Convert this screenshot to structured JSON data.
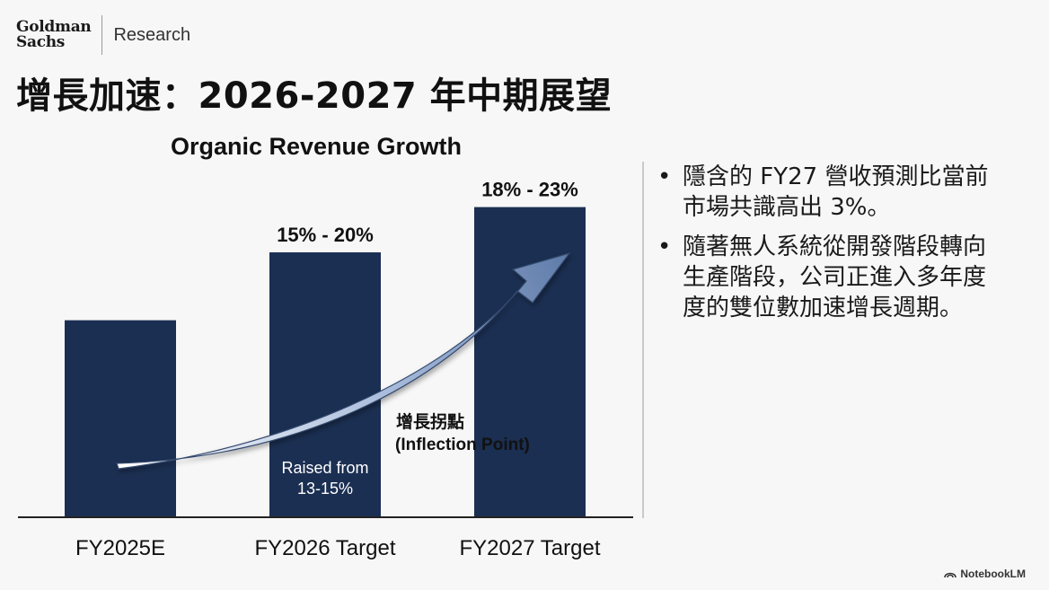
{
  "header": {
    "logo_line1": "Goldman",
    "logo_line2": "Sachs",
    "research_label": "Research"
  },
  "title": "增長加速：2026-2027 年中期展望",
  "chart_data": {
    "type": "bar",
    "title": "Organic Revenue Growth",
    "categories": [
      "FY2025E",
      "FY2026 Target",
      "FY2027 Target"
    ],
    "values": [
      13,
      17.5,
      20.5
    ],
    "value_labels": [
      "",
      "15% - 20%",
      "18% - 23%"
    ],
    "ylim": [
      0,
      25
    ],
    "xlabel": "",
    "ylabel": "",
    "grid": false,
    "bar_annotations": [
      {
        "category": "FY2026 Target",
        "text_line1": "Raised from",
        "text_line2": "13-15%"
      }
    ],
    "arrow_annotation": {
      "label_line1": "增長拐點",
      "label_line2": "(Inflection Point)"
    },
    "colors": {
      "bar": "#1b2f52",
      "arrow_start": "#ffffff",
      "arrow_end": "#5d7aa8"
    }
  },
  "bullets": [
    "隱含的 FY27 營收預測比當前市場共識高出 3%。",
    "隨著無人系統從開發階段轉向生產階段，公司正進入多年度度的雙位數加速增長週期。"
  ],
  "bullet_symbol": "•",
  "footer": {
    "brand": "NotebookLM"
  }
}
